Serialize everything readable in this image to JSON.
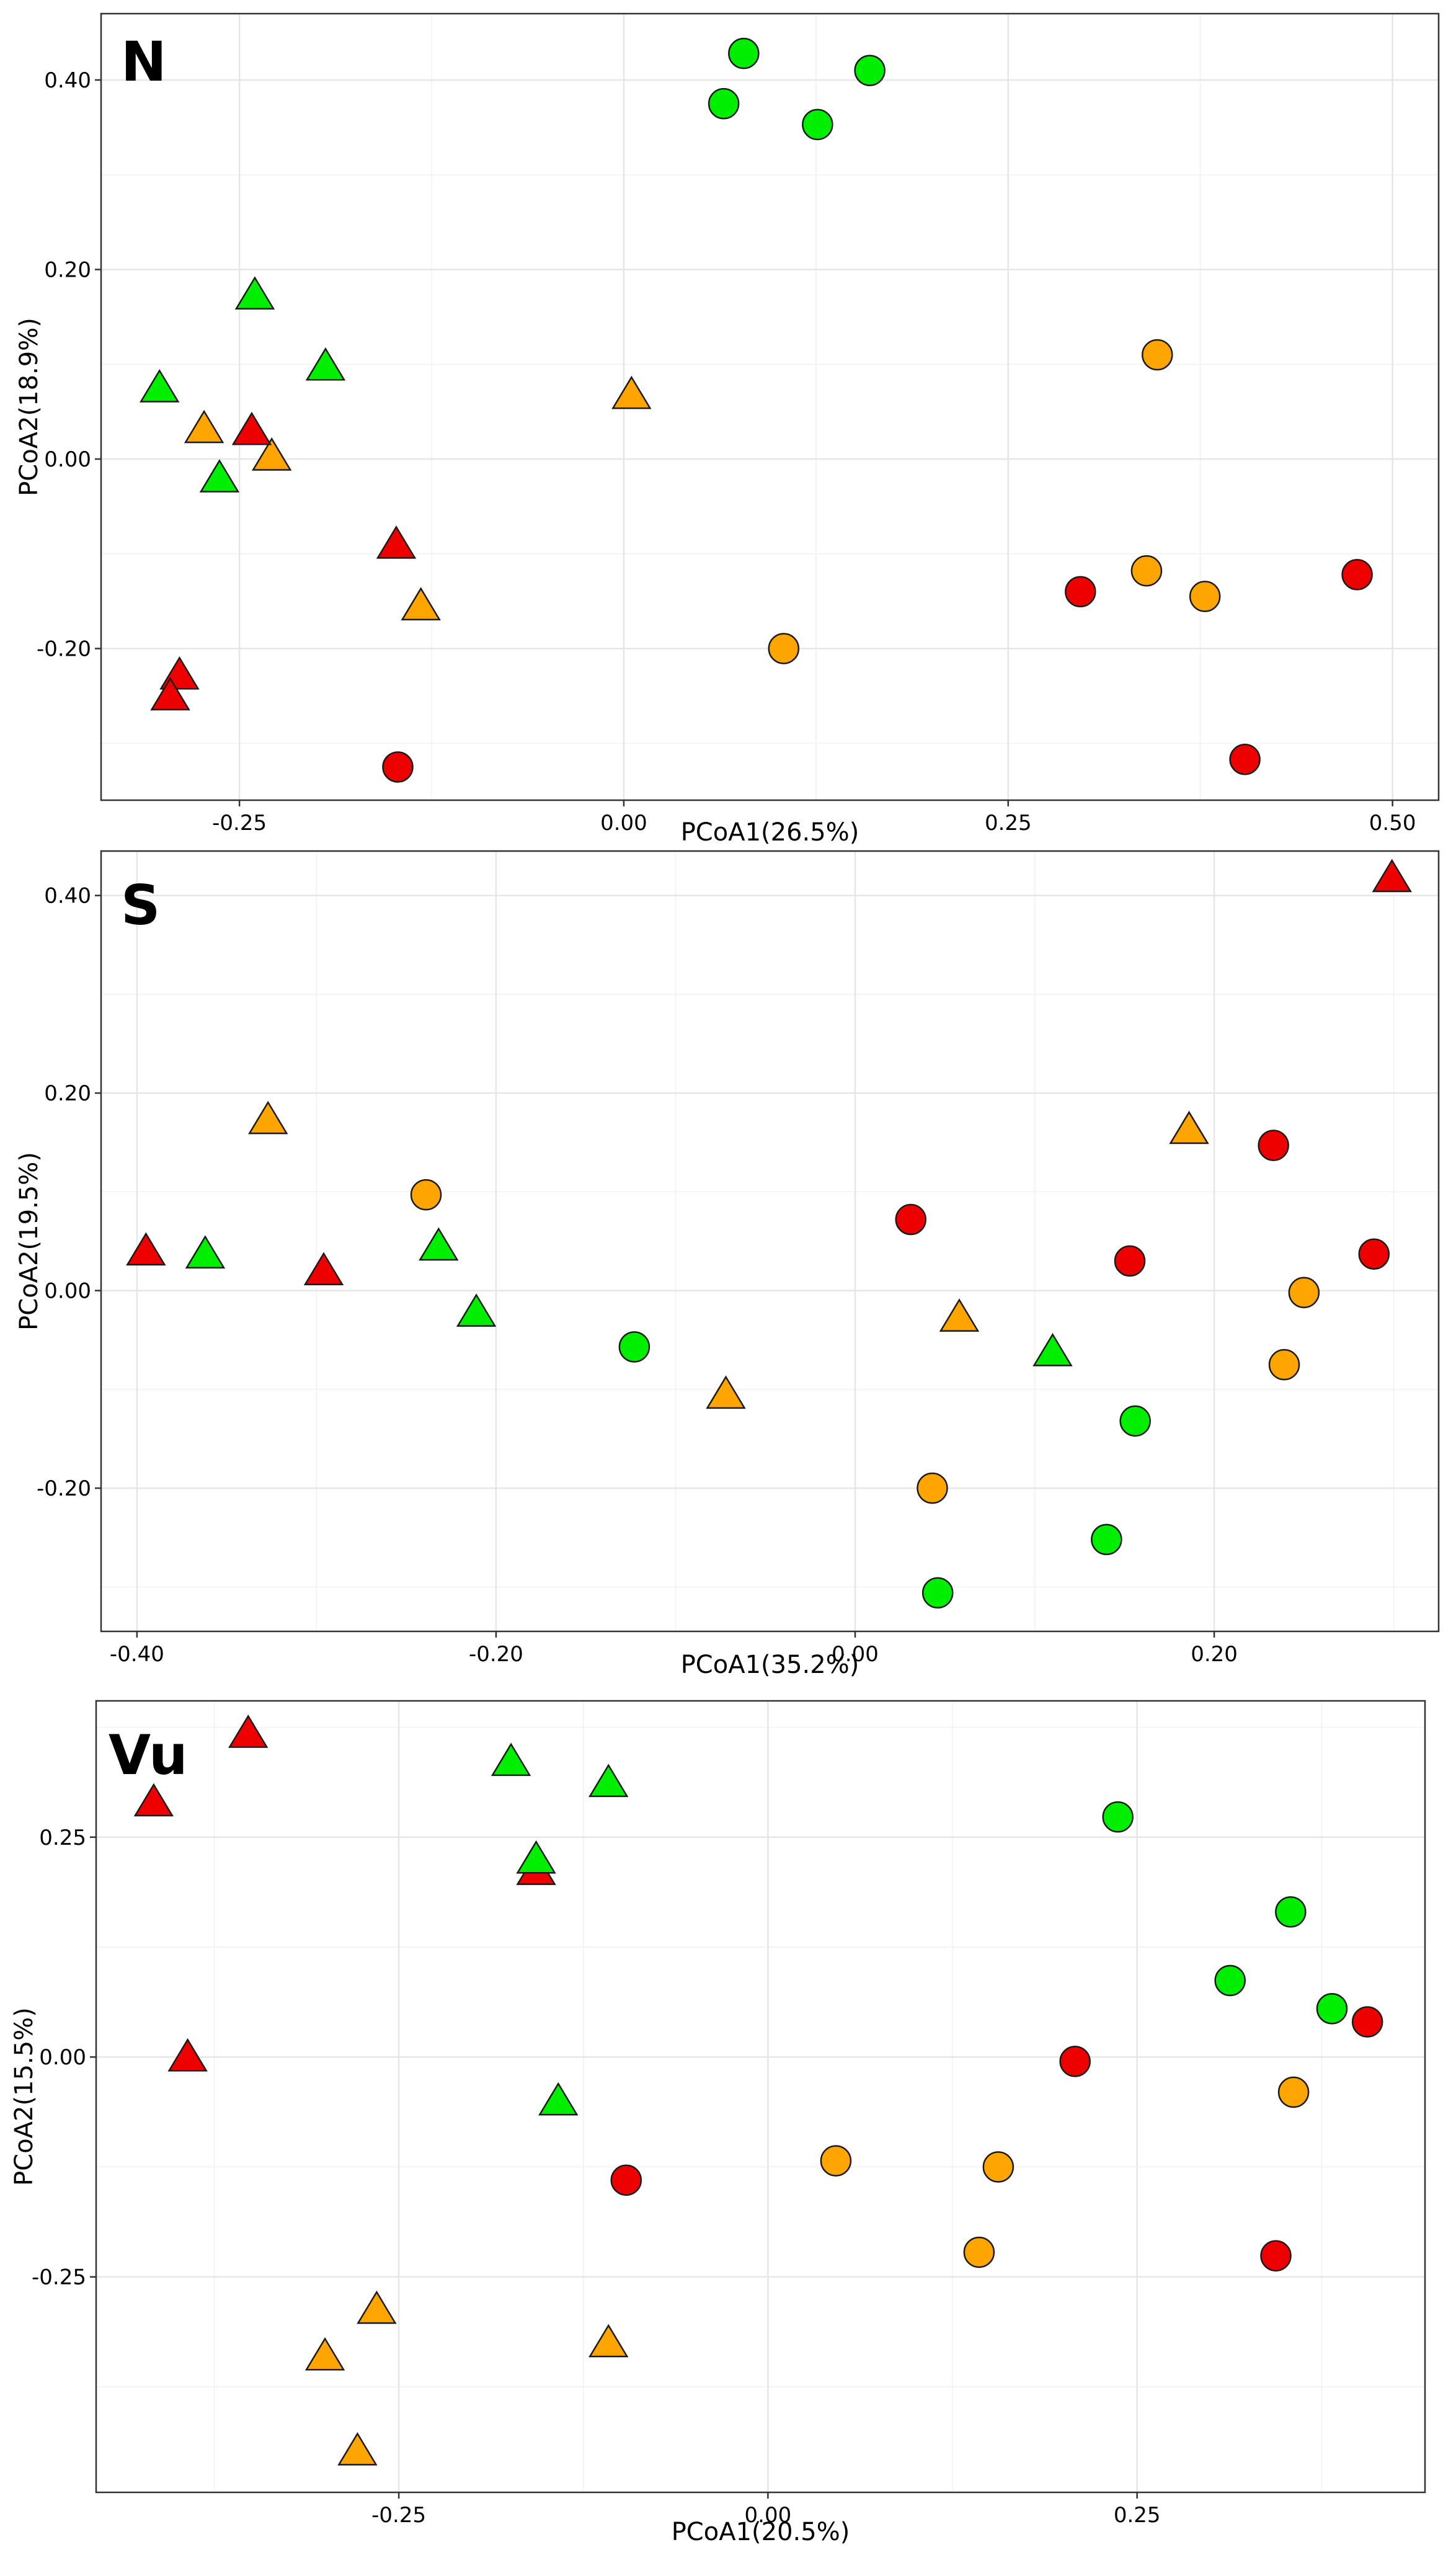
{
  "colors": {
    "green": "#00ee00",
    "orange": "#ffa500",
    "red": "#ee0000"
  },
  "chart_data": [
    {
      "type": "scatter",
      "title": "N",
      "xlabel": "PCoA1(26.5%)",
      "ylabel": "PCoA2(18.9%)",
      "xlim": [
        -0.34,
        0.53
      ],
      "ylim": [
        -0.36,
        0.47
      ],
      "xticks": [
        -0.25,
        0,
        0.25,
        0.5
      ],
      "xtick_labels": [
        "-0.25",
        "0.00",
        "0.25",
        "0.50"
      ],
      "yticks": [
        -0.2,
        0,
        0.2,
        0.4
      ],
      "ytick_labels": [
        "-0.20",
        "0.00",
        "0.20",
        "0.40"
      ],
      "points": [
        {
          "x": 0.078,
          "y": 0.428,
          "shape": "circle",
          "color": "green"
        },
        {
          "x": 0.065,
          "y": 0.375,
          "shape": "circle",
          "color": "green"
        },
        {
          "x": 0.126,
          "y": 0.353,
          "shape": "circle",
          "color": "green"
        },
        {
          "x": 0.16,
          "y": 0.41,
          "shape": "circle",
          "color": "green"
        },
        {
          "x": 0.347,
          "y": 0.11,
          "shape": "circle",
          "color": "orange"
        },
        {
          "x": 0.34,
          "y": -0.118,
          "shape": "circle",
          "color": "orange"
        },
        {
          "x": 0.378,
          "y": -0.145,
          "shape": "circle",
          "color": "orange"
        },
        {
          "x": 0.104,
          "y": -0.2,
          "shape": "circle",
          "color": "orange"
        },
        {
          "x": 0.297,
          "y": -0.14,
          "shape": "circle",
          "color": "red"
        },
        {
          "x": 0.477,
          "y": -0.122,
          "shape": "circle",
          "color": "red"
        },
        {
          "x": 0.404,
          "y": -0.317,
          "shape": "circle",
          "color": "red"
        },
        {
          "x": -0.147,
          "y": -0.325,
          "shape": "circle",
          "color": "red"
        },
        {
          "x": -0.302,
          "y": 0.075,
          "shape": "triangle",
          "color": "green"
        },
        {
          "x": -0.24,
          "y": 0.173,
          "shape": "triangle",
          "color": "green"
        },
        {
          "x": -0.194,
          "y": 0.098,
          "shape": "triangle",
          "color": "green"
        },
        {
          "x": -0.263,
          "y": -0.02,
          "shape": "triangle",
          "color": "green"
        },
        {
          "x": -0.273,
          "y": 0.032,
          "shape": "triangle",
          "color": "orange"
        },
        {
          "x": -0.229,
          "y": 0.003,
          "shape": "triangle",
          "color": "orange"
        },
        {
          "x": 0.005,
          "y": 0.068,
          "shape": "triangle",
          "color": "orange"
        },
        {
          "x": -0.132,
          "y": -0.155,
          "shape": "triangle",
          "color": "orange"
        },
        {
          "x": -0.242,
          "y": 0.03,
          "shape": "triangle",
          "color": "red"
        },
        {
          "x": -0.148,
          "y": -0.09,
          "shape": "triangle",
          "color": "red"
        },
        {
          "x": -0.289,
          "y": -0.228,
          "shape": "triangle",
          "color": "red"
        },
        {
          "x": -0.295,
          "y": -0.25,
          "shape": "triangle",
          "color": "red"
        }
      ]
    },
    {
      "type": "scatter",
      "title": "S",
      "xlabel": "PCoA1(35.2%)",
      "ylabel": "PCoA2(19.5%)",
      "xlim": [
        -0.42,
        0.325
      ],
      "ylim": [
        -0.345,
        0.445
      ],
      "xticks": [
        -0.4,
        -0.2,
        0,
        0.2
      ],
      "xtick_labels": [
        "-0.40",
        "-0.20",
        "0.00",
        "0.20"
      ],
      "yticks": [
        -0.2,
        0,
        0.2,
        0.4
      ],
      "ytick_labels": [
        "-0.20",
        "0.00",
        "0.20",
        "0.40"
      ],
      "points": [
        {
          "x": 0.299,
          "y": 0.418,
          "shape": "triangle",
          "color": "red"
        },
        {
          "x": -0.327,
          "y": 0.173,
          "shape": "triangle",
          "color": "orange"
        },
        {
          "x": 0.186,
          "y": 0.163,
          "shape": "triangle",
          "color": "orange"
        },
        {
          "x": -0.239,
          "y": 0.097,
          "shape": "circle",
          "color": "orange"
        },
        {
          "x": 0.031,
          "y": 0.072,
          "shape": "circle",
          "color": "red"
        },
        {
          "x": 0.233,
          "y": 0.147,
          "shape": "circle",
          "color": "red"
        },
        {
          "x": 0.153,
          "y": 0.03,
          "shape": "circle",
          "color": "red"
        },
        {
          "x": 0.289,
          "y": 0.037,
          "shape": "circle",
          "color": "red"
        },
        {
          "x": -0.395,
          "y": 0.04,
          "shape": "triangle",
          "color": "red"
        },
        {
          "x": -0.362,
          "y": 0.037,
          "shape": "triangle",
          "color": "green"
        },
        {
          "x": -0.296,
          "y": 0.02,
          "shape": "triangle",
          "color": "red"
        },
        {
          "x": -0.232,
          "y": 0.045,
          "shape": "triangle",
          "color": "green"
        },
        {
          "x": -0.211,
          "y": -0.022,
          "shape": "triangle",
          "color": "green"
        },
        {
          "x": -0.123,
          "y": -0.057,
          "shape": "circle",
          "color": "green"
        },
        {
          "x": 0.058,
          "y": -0.027,
          "shape": "triangle",
          "color": "orange"
        },
        {
          "x": 0.25,
          "y": -0.002,
          "shape": "circle",
          "color": "orange"
        },
        {
          "x": 0.239,
          "y": -0.075,
          "shape": "circle",
          "color": "orange"
        },
        {
          "x": 0.11,
          "y": -0.062,
          "shape": "triangle",
          "color": "green"
        },
        {
          "x": 0.156,
          "y": -0.132,
          "shape": "circle",
          "color": "green"
        },
        {
          "x": -0.072,
          "y": -0.105,
          "shape": "triangle",
          "color": "orange"
        },
        {
          "x": 0.043,
          "y": -0.2,
          "shape": "circle",
          "color": "orange"
        },
        {
          "x": 0.14,
          "y": -0.252,
          "shape": "circle",
          "color": "green"
        },
        {
          "x": 0.046,
          "y": -0.306,
          "shape": "circle",
          "color": "green"
        }
      ]
    },
    {
      "type": "scatter",
      "title": "Vu",
      "xlabel": "PCoA1(20.5%)",
      "ylabel": "PCoA2(15.5%)",
      "xlim": [
        -0.455,
        0.445
      ],
      "ylim": [
        -0.495,
        0.405
      ],
      "xticks": [
        -0.25,
        0,
        0.25
      ],
      "xtick_labels": [
        "-0.25",
        "0.00",
        "0.25"
      ],
      "yticks": [
        -0.25,
        0,
        0.25
      ],
      "ytick_labels": [
        "-0.25",
        "0.00",
        "0.25"
      ],
      "points": [
        {
          "x": -0.352,
          "y": 0.368,
          "shape": "triangle",
          "color": "red"
        },
        {
          "x": -0.416,
          "y": 0.29,
          "shape": "triangle",
          "color": "red"
        },
        {
          "x": -0.174,
          "y": 0.336,
          "shape": "triangle",
          "color": "green"
        },
        {
          "x": -0.108,
          "y": 0.312,
          "shape": "triangle",
          "color": "green"
        },
        {
          "x": -0.157,
          "y": 0.212,
          "shape": "triangle",
          "color": "red"
        },
        {
          "x": -0.157,
          "y": 0.225,
          "shape": "triangle",
          "color": "green"
        },
        {
          "x": 0.237,
          "y": 0.273,
          "shape": "circle",
          "color": "green"
        },
        {
          "x": 0.354,
          "y": 0.165,
          "shape": "circle",
          "color": "green"
        },
        {
          "x": 0.313,
          "y": 0.087,
          "shape": "circle",
          "color": "green"
        },
        {
          "x": 0.382,
          "y": 0.055,
          "shape": "circle",
          "color": "green"
        },
        {
          "x": 0.406,
          "y": 0.04,
          "shape": "circle",
          "color": "red"
        },
        {
          "x": 0.208,
          "y": -0.005,
          "shape": "circle",
          "color": "red"
        },
        {
          "x": 0.356,
          "y": -0.04,
          "shape": "circle",
          "color": "orange"
        },
        {
          "x": -0.393,
          "y": 0.0,
          "shape": "triangle",
          "color": "red"
        },
        {
          "x": -0.142,
          "y": -0.05,
          "shape": "triangle",
          "color": "green"
        },
        {
          "x": -0.096,
          "y": -0.14,
          "shape": "circle",
          "color": "red"
        },
        {
          "x": 0.046,
          "y": -0.118,
          "shape": "circle",
          "color": "orange"
        },
        {
          "x": 0.156,
          "y": -0.125,
          "shape": "circle",
          "color": "orange"
        },
        {
          "x": 0.143,
          "y": -0.222,
          "shape": "circle",
          "color": "orange"
        },
        {
          "x": 0.344,
          "y": -0.226,
          "shape": "circle",
          "color": "red"
        },
        {
          "x": -0.265,
          "y": -0.287,
          "shape": "triangle",
          "color": "orange"
        },
        {
          "x": -0.3,
          "y": -0.34,
          "shape": "triangle",
          "color": "orange"
        },
        {
          "x": -0.108,
          "y": -0.325,
          "shape": "triangle",
          "color": "orange"
        },
        {
          "x": -0.278,
          "y": -0.448,
          "shape": "triangle",
          "color": "orange"
        }
      ]
    }
  ]
}
